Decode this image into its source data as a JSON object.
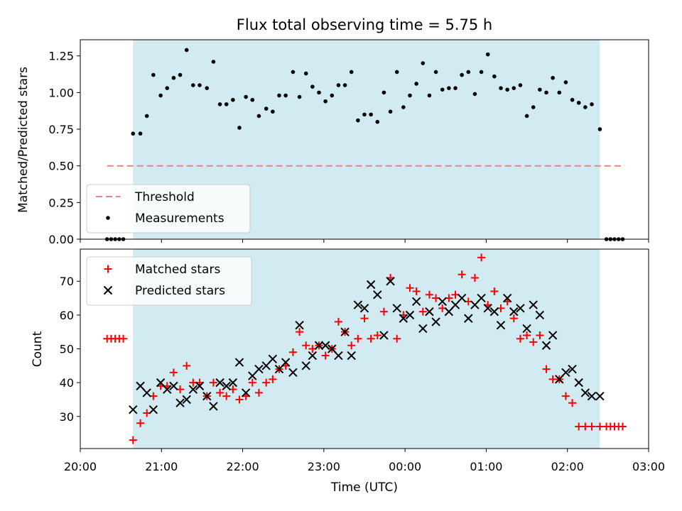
{
  "chart_data": {
    "type": "scatter",
    "title": "Flux total observing time = 5.75 h",
    "xlabel": "Time (UTC)",
    "x_unit": "hours since 20:00 UTC",
    "xlim": [
      0,
      7.0
    ],
    "xticks": [
      {
        "value": 0,
        "label": "20:00"
      },
      {
        "value": 1,
        "label": "21:00"
      },
      {
        "value": 2,
        "label": "22:00"
      },
      {
        "value": 3,
        "label": "23:00"
      },
      {
        "value": 4,
        "label": "00:00"
      },
      {
        "value": 5,
        "label": "01:00"
      },
      {
        "value": 6,
        "label": "02:00"
      },
      {
        "value": 7,
        "label": "03:00"
      }
    ],
    "observing_window": [
      0.65,
      6.4
    ],
    "observing_window_color": "#add8e6",
    "panels": [
      {
        "ylabel": "Matched/Predicted stars",
        "ylim": [
          0,
          1.36
        ],
        "yticks": [
          "0.00",
          "0.25",
          "0.50",
          "0.75",
          "1.00",
          "1.25"
        ],
        "threshold": {
          "label": "Threshold",
          "value": 0.5,
          "x_range": [
            0.33,
            6.7
          ],
          "color": "#f08080"
        },
        "series": [
          {
            "name": "Measurements",
            "color": "#000000",
            "x": [
              0.33,
              0.38,
              0.43,
              0.48,
              0.53,
              0.65,
              0.74,
              0.82,
              0.9,
              0.99,
              1.07,
              1.15,
              1.23,
              1.31,
              1.39,
              1.47,
              1.56,
              1.64,
              1.72,
              1.8,
              1.88,
              1.96,
              2.04,
              2.12,
              2.2,
              2.29,
              2.37,
              2.45,
              2.53,
              2.62,
              2.7,
              2.78,
              2.86,
              2.94,
              3.02,
              3.1,
              3.18,
              3.26,
              3.34,
              3.42,
              3.5,
              3.58,
              3.66,
              3.74,
              3.82,
              3.9,
              3.98,
              4.06,
              4.14,
              4.22,
              4.3,
              4.38,
              4.46,
              4.54,
              4.62,
              4.7,
              4.78,
              4.86,
              4.94,
              5.02,
              5.1,
              5.18,
              5.26,
              5.34,
              5.42,
              5.5,
              5.58,
              5.66,
              5.74,
              5.82,
              5.9,
              5.98,
              6.06,
              6.14,
              6.22,
              6.3,
              6.4,
              6.48,
              6.53,
              6.58,
              6.63,
              6.68
            ],
            "y": [
              0,
              0,
              0,
              0,
              0,
              0.72,
              0.72,
              0.84,
              1.12,
              0.98,
              1.03,
              1.1,
              1.12,
              1.29,
              1.05,
              1.05,
              1.03,
              1.21,
              0.92,
              0.92,
              0.95,
              0.76,
              0.97,
              0.95,
              0.84,
              0.89,
              0.87,
              0.98,
              0.98,
              1.14,
              0.97,
              1.13,
              1.04,
              1.0,
              0.94,
              0.98,
              1.05,
              1.05,
              1.14,
              0.81,
              0.85,
              0.85,
              0.8,
              1.0,
              0.87,
              1.14,
              0.9,
              0.98,
              1.06,
              1.2,
              0.98,
              1.14,
              1.02,
              1.03,
              1.03,
              1.12,
              1.14,
              0.99,
              1.14,
              1.26,
              1.11,
              1.03,
              1.02,
              1.03,
              1.05,
              0.84,
              0.9,
              1.02,
              1.0,
              1.1,
              1.0,
              1.07,
              0.95,
              0.93,
              0.9,
              0.92,
              0.75,
              0,
              0,
              0,
              0,
              0
            ]
          }
        ]
      },
      {
        "ylabel": "Count",
        "ylim": [
          20.5,
          79.5
        ],
        "yticks": [
          "30",
          "40",
          "50",
          "60",
          "70"
        ],
        "series": [
          {
            "name": "Matched stars",
            "marker": "+",
            "color": "#ff0000",
            "x": [
              0.33,
              0.38,
              0.43,
              0.48,
              0.53,
              0.65,
              0.74,
              0.82,
              0.9,
              0.99,
              1.07,
              1.15,
              1.23,
              1.31,
              1.39,
              1.47,
              1.56,
              1.64,
              1.72,
              1.8,
              1.88,
              1.96,
              2.04,
              2.12,
              2.2,
              2.29,
              2.37,
              2.45,
              2.53,
              2.62,
              2.7,
              2.78,
              2.86,
              2.94,
              3.02,
              3.1,
              3.18,
              3.26,
              3.34,
              3.42,
              3.5,
              3.58,
              3.66,
              3.74,
              3.82,
              3.9,
              3.98,
              4.06,
              4.14,
              4.22,
              4.3,
              4.38,
              4.46,
              4.54,
              4.62,
              4.7,
              4.78,
              4.86,
              4.94,
              5.02,
              5.1,
              5.18,
              5.26,
              5.34,
              5.42,
              5.5,
              5.58,
              5.66,
              5.74,
              5.82,
              5.9,
              5.98,
              6.06,
              6.14,
              6.22,
              6.3,
              6.4,
              6.48,
              6.53,
              6.58,
              6.63,
              6.68
            ],
            "y": [
              53,
              53,
              53,
              53,
              53,
              23,
              28,
              31,
              36,
              39,
              39,
              43,
              38,
              45,
              40,
              40,
              36,
              40,
              37,
              36,
              38,
              35,
              36,
              40,
              37,
              40,
              41,
              44,
              45,
              49,
              55,
              51,
              50,
              51,
              48,
              50,
              58,
              55,
              51,
              53,
              59,
              53,
              54,
              61,
              71,
              53,
              60,
              68,
              67,
              61,
              66,
              65,
              62,
              65,
              66,
              72,
              64,
              71,
              77,
              63,
              67,
              62,
              64,
              59,
              53,
              54,
              52,
              54,
              44,
              41,
              41,
              36,
              34,
              27,
              27,
              27,
              27,
              27,
              27,
              27,
              27,
              27
            ]
          },
          {
            "name": "Predicted stars",
            "marker": "x",
            "color": "#000000",
            "x": [
              0.65,
              0.74,
              0.82,
              0.9,
              0.99,
              1.07,
              1.15,
              1.23,
              1.31,
              1.39,
              1.47,
              1.56,
              1.64,
              1.72,
              1.8,
              1.88,
              1.96,
              2.04,
              2.12,
              2.2,
              2.29,
              2.37,
              2.45,
              2.53,
              2.62,
              2.7,
              2.78,
              2.86,
              2.94,
              3.02,
              3.1,
              3.18,
              3.26,
              3.34,
              3.42,
              3.5,
              3.58,
              3.66,
              3.74,
              3.82,
              3.9,
              3.98,
              4.06,
              4.14,
              4.22,
              4.3,
              4.38,
              4.46,
              4.54,
              4.62,
              4.7,
              4.78,
              4.86,
              4.94,
              5.02,
              5.1,
              5.18,
              5.26,
              5.34,
              5.42,
              5.5,
              5.58,
              5.66,
              5.74,
              5.82,
              5.9,
              5.98,
              6.06,
              6.14,
              6.22,
              6.3,
              6.4
            ],
            "y": [
              32,
              39,
              37,
              32,
              40,
              38,
              39,
              34,
              35,
              38,
              39,
              36,
              33,
              40,
              39,
              40,
              46,
              37,
              42,
              44,
              45,
              47,
              44,
              46,
              43,
              57,
              45,
              48,
              51,
              51,
              50,
              48,
              55,
              48,
              63,
              62,
              69,
              66,
              54,
              70,
              62,
              59,
              60,
              64,
              56,
              61,
              58,
              64,
              61,
              63,
              65,
              59,
              63,
              65,
              62,
              61,
              57,
              65,
              61,
              62,
              56,
              63,
              60,
              51,
              54,
              41,
              43,
              44,
              40,
              37,
              36,
              36
            ]
          }
        ]
      }
    ]
  }
}
